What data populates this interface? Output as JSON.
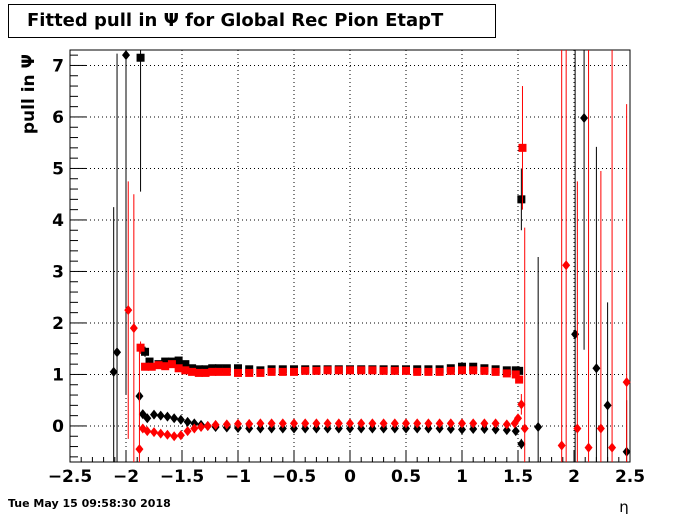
{
  "title": "Fitted pull in  Ψ  for Global Rec Pion EtapT",
  "timestamp": "Tue May 15 09:58:30 2018",
  "colors": {
    "series_black": "#000000",
    "series_red": "#ff0000"
  },
  "chart_data": {
    "type": "scatter",
    "title": "Fitted pull in  Ψ  for Global Rec Pion EtapT",
    "xlabel": "η",
    "ylabel": "pull in  Ψ",
    "xlim": [
      -2.5,
      2.5
    ],
    "ylim": [
      -0.7,
      7.3
    ],
    "grid": true,
    "x_ticks": [
      -2.5,
      -2,
      -1.5,
      -1,
      -0.5,
      0,
      0.5,
      1,
      1.5,
      2,
      2.5
    ],
    "x_tick_labels": [
      "−2.5",
      "−2",
      "−1.5",
      "−1",
      "−0.5",
      "0",
      "0.5",
      "1",
      "1.5",
      "2",
      "2.5"
    ],
    "y_ticks": [
      0,
      1,
      2,
      3,
      4,
      5,
      6,
      7
    ],
    "y_tick_labels": [
      "0",
      "1",
      "2",
      "3",
      "4",
      "5",
      "6",
      "7"
    ],
    "series": [
      {
        "color": "#000000",
        "marker": "square",
        "points": [
          [
            -1.87,
            7.15,
            2.6
          ],
          [
            -1.83,
            1.44,
            0.1
          ],
          [
            -1.79,
            1.25,
            0.05
          ],
          [
            -1.71,
            1.2,
            0.04
          ],
          [
            -1.65,
            1.25,
            0.03
          ],
          [
            -1.59,
            1.25,
            0.03
          ],
          [
            -1.53,
            1.27,
            0.03
          ],
          [
            -1.47,
            1.2,
            0.03
          ],
          [
            -1.41,
            1.12,
            0.03
          ],
          [
            -1.35,
            1.1,
            0.03
          ],
          [
            -1.29,
            1.1,
            0.03
          ],
          [
            -1.23,
            1.12,
            0.03
          ],
          [
            -1.17,
            1.12,
            0.03
          ],
          [
            -1.1,
            1.12,
            0.03
          ],
          [
            -1.0,
            1.12,
            0.03
          ],
          [
            -0.9,
            1.1,
            0.03
          ],
          [
            -0.8,
            1.08,
            0.03
          ],
          [
            -0.7,
            1.1,
            0.03
          ],
          [
            -0.6,
            1.1,
            0.03
          ],
          [
            -0.5,
            1.1,
            0.03
          ],
          [
            -0.4,
            1.1,
            0.03
          ],
          [
            -0.3,
            1.1,
            0.03
          ],
          [
            -0.2,
            1.1,
            0.03
          ],
          [
            -0.1,
            1.1,
            0.03
          ],
          [
            0.0,
            1.1,
            0.03
          ],
          [
            0.1,
            1.1,
            0.03
          ],
          [
            0.2,
            1.1,
            0.03
          ],
          [
            0.3,
            1.1,
            0.03
          ],
          [
            0.4,
            1.1,
            0.03
          ],
          [
            0.5,
            1.1,
            0.03
          ],
          [
            0.6,
            1.1,
            0.03
          ],
          [
            0.7,
            1.1,
            0.03
          ],
          [
            0.8,
            1.1,
            0.03
          ],
          [
            0.9,
            1.12,
            0.03
          ],
          [
            1.0,
            1.15,
            0.03
          ],
          [
            1.1,
            1.15,
            0.03
          ],
          [
            1.2,
            1.12,
            0.03
          ],
          [
            1.3,
            1.1,
            0.03
          ],
          [
            1.4,
            1.08,
            0.03
          ],
          [
            1.48,
            1.08,
            0.04
          ],
          [
            1.51,
            1.07,
            0.05
          ],
          [
            1.53,
            4.4,
            0.6
          ]
        ]
      },
      {
        "color": "#000000",
        "marker": "diamond",
        "points": [
          [
            -2.11,
            1.05,
            3.2
          ],
          [
            -2.08,
            1.43,
            5.8
          ],
          [
            -2.0,
            7.2,
            6.6
          ],
          [
            -1.88,
            0.58,
            0.12
          ],
          [
            -1.85,
            0.23,
            0.04
          ],
          [
            -1.81,
            0.15,
            0.03
          ],
          [
            -1.75,
            0.22,
            0.03
          ],
          [
            -1.69,
            0.2,
            0.03
          ],
          [
            -1.63,
            0.18,
            0.03
          ],
          [
            -1.57,
            0.15,
            0.03
          ],
          [
            -1.51,
            0.12,
            0.03
          ],
          [
            -1.45,
            0.08,
            0.03
          ],
          [
            -1.39,
            0.05,
            0.03
          ],
          [
            -1.33,
            0.02,
            0.03
          ],
          [
            -1.27,
            0.0,
            0.03
          ],
          [
            -1.2,
            -0.02,
            0.03
          ],
          [
            -1.1,
            -0.03,
            0.03
          ],
          [
            -1.0,
            -0.04,
            0.03
          ],
          [
            -0.9,
            -0.05,
            0.03
          ],
          [
            -0.8,
            -0.05,
            0.03
          ],
          [
            -0.7,
            -0.05,
            0.03
          ],
          [
            -0.6,
            -0.05,
            0.03
          ],
          [
            -0.5,
            -0.05,
            0.03
          ],
          [
            -0.4,
            -0.05,
            0.03
          ],
          [
            -0.3,
            -0.05,
            0.03
          ],
          [
            -0.2,
            -0.05,
            0.03
          ],
          [
            -0.1,
            -0.05,
            0.03
          ],
          [
            0.0,
            -0.05,
            0.03
          ],
          [
            0.1,
            -0.05,
            0.03
          ],
          [
            0.2,
            -0.05,
            0.03
          ],
          [
            0.3,
            -0.05,
            0.03
          ],
          [
            0.4,
            -0.05,
            0.03
          ],
          [
            0.5,
            -0.05,
            0.03
          ],
          [
            0.6,
            -0.05,
            0.03
          ],
          [
            0.7,
            -0.05,
            0.03
          ],
          [
            0.8,
            -0.05,
            0.03
          ],
          [
            0.9,
            -0.06,
            0.03
          ],
          [
            1.0,
            -0.07,
            0.03
          ],
          [
            1.1,
            -0.06,
            0.03
          ],
          [
            1.2,
            -0.06,
            0.03
          ],
          [
            1.3,
            -0.07,
            0.03
          ],
          [
            1.4,
            -0.08,
            0.03
          ],
          [
            1.48,
            -0.1,
            0.05
          ],
          [
            1.53,
            -0.35,
            0.1
          ],
          [
            1.68,
            -0.02,
            3.3
          ],
          [
            2.01,
            1.78,
            5.6
          ],
          [
            2.09,
            5.98,
            4.5
          ],
          [
            2.2,
            1.12,
            4.3
          ],
          [
            2.3,
            0.4,
            2.0
          ],
          [
            2.47,
            -0.5,
            1.0
          ]
        ]
      },
      {
        "color": "#ff0000",
        "marker": "square",
        "points": [
          [
            -1.87,
            1.52,
            0.12
          ],
          [
            -1.83,
            1.15,
            0.05
          ],
          [
            -1.77,
            1.15,
            0.04
          ],
          [
            -1.71,
            1.18,
            0.03
          ],
          [
            -1.65,
            1.16,
            0.03
          ],
          [
            -1.59,
            1.2,
            0.03
          ],
          [
            -1.53,
            1.12,
            0.03
          ],
          [
            -1.47,
            1.08,
            0.03
          ],
          [
            -1.41,
            1.05,
            0.03
          ],
          [
            -1.35,
            1.03,
            0.03
          ],
          [
            -1.29,
            1.03,
            0.03
          ],
          [
            -1.23,
            1.05,
            0.03
          ],
          [
            -1.17,
            1.05,
            0.03
          ],
          [
            -1.1,
            1.05,
            0.03
          ],
          [
            -1.0,
            1.03,
            0.03
          ],
          [
            -0.9,
            1.03,
            0.03
          ],
          [
            -0.8,
            1.03,
            0.03
          ],
          [
            -0.7,
            1.05,
            0.03
          ],
          [
            -0.6,
            1.05,
            0.03
          ],
          [
            -0.5,
            1.05,
            0.03
          ],
          [
            -0.4,
            1.07,
            0.03
          ],
          [
            -0.3,
            1.07,
            0.03
          ],
          [
            -0.2,
            1.08,
            0.03
          ],
          [
            -0.1,
            1.08,
            0.03
          ],
          [
            0.0,
            1.08,
            0.03
          ],
          [
            0.1,
            1.08,
            0.03
          ],
          [
            0.2,
            1.08,
            0.03
          ],
          [
            0.3,
            1.07,
            0.03
          ],
          [
            0.4,
            1.07,
            0.03
          ],
          [
            0.5,
            1.07,
            0.03
          ],
          [
            0.6,
            1.05,
            0.03
          ],
          [
            0.7,
            1.05,
            0.03
          ],
          [
            0.8,
            1.05,
            0.03
          ],
          [
            0.9,
            1.07,
            0.03
          ],
          [
            1.0,
            1.08,
            0.03
          ],
          [
            1.1,
            1.08,
            0.03
          ],
          [
            1.2,
            1.07,
            0.03
          ],
          [
            1.3,
            1.05,
            0.03
          ],
          [
            1.4,
            1.02,
            0.03
          ],
          [
            1.48,
            1.0,
            0.04
          ],
          [
            1.51,
            0.9,
            0.06
          ],
          [
            1.54,
            5.4,
            1.2
          ]
        ]
      },
      {
        "color": "#ff0000",
        "marker": "diamond",
        "points": [
          [
            -1.98,
            2.25,
            2.5
          ],
          [
            -1.93,
            1.9,
            2.6
          ],
          [
            -1.88,
            -0.45,
            2.0
          ],
          [
            -1.85,
            -0.05,
            0.04
          ],
          [
            -1.81,
            -0.1,
            0.03
          ],
          [
            -1.75,
            -0.12,
            0.03
          ],
          [
            -1.69,
            -0.15,
            0.03
          ],
          [
            -1.63,
            -0.17,
            0.03
          ],
          [
            -1.57,
            -0.2,
            0.03
          ],
          [
            -1.51,
            -0.18,
            0.03
          ],
          [
            -1.45,
            -0.1,
            0.03
          ],
          [
            -1.39,
            -0.05,
            0.03
          ],
          [
            -1.33,
            -0.02,
            0.03
          ],
          [
            -1.27,
            0.0,
            0.03
          ],
          [
            -1.2,
            0.02,
            0.03
          ],
          [
            -1.1,
            0.03,
            0.03
          ],
          [
            -1.0,
            0.04,
            0.03
          ],
          [
            -0.9,
            0.04,
            0.03
          ],
          [
            -0.8,
            0.05,
            0.03
          ],
          [
            -0.7,
            0.05,
            0.03
          ],
          [
            -0.6,
            0.05,
            0.03
          ],
          [
            -0.5,
            0.05,
            0.03
          ],
          [
            -0.4,
            0.05,
            0.03
          ],
          [
            -0.3,
            0.05,
            0.03
          ],
          [
            -0.2,
            0.05,
            0.03
          ],
          [
            -0.1,
            0.05,
            0.03
          ],
          [
            0.0,
            0.05,
            0.03
          ],
          [
            0.1,
            0.05,
            0.03
          ],
          [
            0.2,
            0.05,
            0.03
          ],
          [
            0.3,
            0.05,
            0.03
          ],
          [
            0.4,
            0.05,
            0.03
          ],
          [
            0.5,
            0.05,
            0.03
          ],
          [
            0.6,
            0.05,
            0.03
          ],
          [
            0.7,
            0.05,
            0.03
          ],
          [
            0.8,
            0.05,
            0.03
          ],
          [
            0.9,
            0.05,
            0.03
          ],
          [
            1.0,
            0.05,
            0.03
          ],
          [
            1.1,
            0.05,
            0.03
          ],
          [
            1.2,
            0.05,
            0.03
          ],
          [
            1.3,
            0.05,
            0.03
          ],
          [
            1.4,
            0.03,
            0.03
          ],
          [
            1.47,
            0.05,
            0.04
          ],
          [
            1.5,
            0.15,
            0.05
          ],
          [
            1.53,
            0.42,
            0.2
          ],
          [
            1.56,
            -0.05,
            3.9
          ],
          [
            1.89,
            -0.38,
            8.0
          ],
          [
            1.93,
            3.12,
            6.0
          ],
          [
            2.03,
            -0.05,
            4.8
          ],
          [
            2.13,
            -0.42,
            7.8
          ],
          [
            2.24,
            -0.05,
            5.0
          ],
          [
            2.34,
            -0.42,
            8.0
          ],
          [
            2.47,
            0.85,
            5.4
          ]
        ]
      }
    ]
  }
}
